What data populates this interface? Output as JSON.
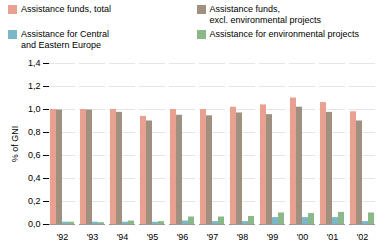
{
  "chart_data": {
    "type": "bar",
    "categories": [
      "'92",
      "'93",
      "'94",
      "'95",
      "'96",
      "'97",
      "'98",
      "'99",
      "'00",
      "'01",
      "'02"
    ],
    "series": [
      {
        "name": "Assistance funds, total",
        "color": "#e8a090",
        "values": [
          1.0,
          1.0,
          1.0,
          0.94,
          1.0,
          1.0,
          1.02,
          1.04,
          1.1,
          1.06,
          0.98
        ]
      },
      {
        "name": "Assistance funds,\nexcl. environmental projects",
        "color": "#a09080",
        "values": [
          0.995,
          0.995,
          0.975,
          0.9,
          0.95,
          0.945,
          0.97,
          0.955,
          1.02,
          0.975,
          0.9
        ]
      },
      {
        "name": "Assistance for Central\nand Eastern Europe",
        "color": "#7ab8c8",
        "values": [
          0.02,
          0.02,
          0.02,
          0.02,
          0.03,
          0.025,
          0.025,
          0.06,
          0.06,
          0.06,
          0.025
        ]
      },
      {
        "name": "Assistance for environmental projects",
        "color": "#8ab888",
        "values": [
          0.02,
          0.015,
          0.03,
          0.025,
          0.065,
          0.065,
          0.07,
          0.1,
          0.095,
          0.105,
          0.1
        ]
      }
    ],
    "ylabel": "% of GNI",
    "ylim": [
      0,
      1.4
    ],
    "yticks": [
      {
        "value": 0.0,
        "label": "0,0"
      },
      {
        "value": 0.2,
        "label": "0,2"
      },
      {
        "value": 0.4,
        "label": "0,4"
      },
      {
        "value": 0.6,
        "label": "0,6"
      },
      {
        "value": 0.8,
        "label": "0,8"
      },
      {
        "value": 1.0,
        "label": "1,0"
      },
      {
        "value": 1.2,
        "label": "1,2"
      },
      {
        "value": 1.4,
        "label": "1,4"
      }
    ],
    "grid": true,
    "legend": "upper left"
  }
}
